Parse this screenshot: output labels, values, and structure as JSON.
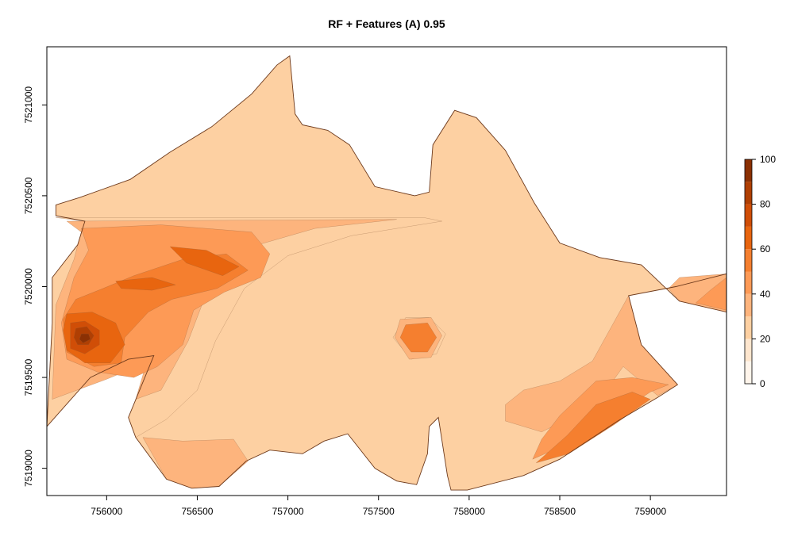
{
  "chart_data": {
    "type": "heatmap",
    "title": "RF + Features (A)  0.95",
    "xlabel": "",
    "ylabel": "",
    "xlim": [
      755670,
      759420
    ],
    "ylim": [
      7518850,
      7521320
    ],
    "x_ticks": [
      756000,
      756500,
      757000,
      757500,
      758000,
      758500,
      759000
    ],
    "y_ticks": [
      7519000,
      7519500,
      7520000,
      7520500,
      7521000
    ],
    "x_tick_labels": [
      "756000",
      "756500",
      "757000",
      "757500",
      "758000",
      "758500",
      "759000"
    ],
    "y_tick_labels": [
      "7519000",
      "7519500",
      "7520000",
      "7520500",
      "7521000"
    ],
    "colorbar": {
      "range": [
        0,
        100
      ],
      "ticks": [
        0,
        20,
        40,
        60,
        80,
        100
      ],
      "tick_labels": [
        "0",
        "20",
        "40",
        "60",
        "80",
        "100"
      ],
      "levels": [
        0,
        10,
        20,
        30,
        40,
        50,
        60,
        70,
        80,
        90,
        100
      ],
      "colors": [
        "#fff5eb",
        "#fee6ce",
        "#fdd0a2",
        "#fdb47d",
        "#fd9a56",
        "#f57f2f",
        "#e8650f",
        "#d04e07",
        "#b03f03",
        "#8b3003"
      ]
    },
    "field_outline": [
      [
        755670,
        7519230
      ],
      [
        755910,
        7519500
      ],
      [
        756120,
        7519600
      ],
      [
        756260,
        7519620
      ],
      [
        756120,
        7519280
      ],
      [
        756160,
        7519170
      ],
      [
        756330,
        7518940
      ],
      [
        756470,
        7518890
      ],
      [
        756620,
        7518900
      ],
      [
        756770,
        7519040
      ],
      [
        756900,
        7519100
      ],
      [
        757080,
        7519080
      ],
      [
        757200,
        7519150
      ],
      [
        757330,
        7519190
      ],
      [
        757480,
        7519000
      ],
      [
        757600,
        7518930
      ],
      [
        757710,
        7518910
      ],
      [
        757770,
        7519080
      ],
      [
        757780,
        7519230
      ],
      [
        757830,
        7519280
      ],
      [
        757880,
        7518960
      ],
      [
        757900,
        7518880
      ],
      [
        757990,
        7518880
      ],
      [
        758300,
        7518960
      ],
      [
        758500,
        7519050
      ],
      [
        758820,
        7519260
      ],
      [
        759040,
        7519390
      ],
      [
        759150,
        7519460
      ],
      [
        758950,
        7519680
      ],
      [
        758880,
        7519950
      ],
      [
        759140,
        7520000
      ],
      [
        759420,
        7520070
      ],
      [
        759420,
        7519860
      ],
      [
        759160,
        7519920
      ],
      [
        758950,
        7520120
      ],
      [
        758720,
        7520160
      ],
      [
        758500,
        7520240
      ],
      [
        758360,
        7520460
      ],
      [
        758200,
        7520750
      ],
      [
        758040,
        7520930
      ],
      [
        757920,
        7520970
      ],
      [
        757800,
        7520780
      ],
      [
        757780,
        7520520
      ],
      [
        757700,
        7520500
      ],
      [
        757480,
        7520550
      ],
      [
        757340,
        7520780
      ],
      [
        757220,
        7520860
      ],
      [
        757080,
        7520890
      ],
      [
        757040,
        7520950
      ],
      [
        757010,
        7521270
      ],
      [
        756940,
        7521220
      ],
      [
        756800,
        7521060
      ],
      [
        756580,
        7520880
      ],
      [
        756350,
        7520740
      ],
      [
        756130,
        7520590
      ],
      [
        755850,
        7520490
      ],
      [
        755720,
        7520450
      ],
      [
        755720,
        7520390
      ],
      [
        755880,
        7520360
      ],
      [
        755840,
        7520230
      ],
      [
        755700,
        7520050
      ],
      [
        755700,
        7519800
      ]
    ],
    "outline_color": "#6e3a1c",
    "zones": [
      {
        "level": 20,
        "polygon": [
          [
            757650,
            7519830
          ],
          [
            757780,
            7519830
          ],
          [
            757870,
            7519740
          ],
          [
            757820,
            7519630
          ],
          [
            757680,
            7519600
          ],
          [
            757580,
            7519720
          ]
        ]
      },
      {
        "level": 20,
        "polygon": [
          [
            755720,
            7520380
          ],
          [
            757750,
            7520380
          ],
          [
            757850,
            7520360
          ],
          [
            757350,
            7520280
          ],
          [
            757000,
            7520170
          ],
          [
            756760,
            7519990
          ],
          [
            756600,
            7519700
          ],
          [
            756500,
            7519430
          ],
          [
            756330,
            7519270
          ],
          [
            756160,
            7519170
          ],
          [
            756120,
            7519280
          ],
          [
            756260,
            7519620
          ],
          [
            756120,
            7519600
          ],
          [
            755910,
            7519500
          ],
          [
            755670,
            7519230
          ],
          [
            755700,
            7519800
          ],
          [
            755700,
            7520050
          ],
          [
            755840,
            7520230
          ],
          [
            755880,
            7520360
          ]
        ]
      },
      {
        "level": 30,
        "polygon": [
          [
            755780,
            7520360
          ],
          [
            757600,
            7520370
          ],
          [
            757150,
            7520320
          ],
          [
            756800,
            7520220
          ],
          [
            756560,
            7519990
          ],
          [
            756450,
            7519700
          ],
          [
            756300,
            7519430
          ],
          [
            756160,
            7519380
          ],
          [
            756220,
            7519580
          ],
          [
            756000,
            7519490
          ],
          [
            755700,
            7519380
          ],
          [
            755720,
            7519900
          ],
          [
            755820,
            7520150
          ],
          [
            755860,
            7520300
          ]
        ]
      },
      {
        "level": 40,
        "polygon": [
          [
            755860,
            7520320
          ],
          [
            756300,
            7520340
          ],
          [
            756800,
            7520300
          ],
          [
            756900,
            7520180
          ],
          [
            756850,
            7520050
          ],
          [
            756650,
            7519970
          ],
          [
            756480,
            7519870
          ],
          [
            756420,
            7519680
          ],
          [
            756280,
            7519560
          ],
          [
            756150,
            7519500
          ],
          [
            755950,
            7519530
          ],
          [
            755780,
            7519600
          ],
          [
            755750,
            7519800
          ],
          [
            755820,
            7520050
          ],
          [
            755900,
            7520200
          ]
        ]
      },
      {
        "level": 50,
        "polygon": [
          [
            755830,
            7519930
          ],
          [
            755980,
            7519990
          ],
          [
            756150,
            7520060
          ],
          [
            756420,
            7520150
          ],
          [
            756660,
            7520180
          ],
          [
            756780,
            7520090
          ],
          [
            756610,
            7519990
          ],
          [
            756360,
            7519930
          ],
          [
            756230,
            7519860
          ],
          [
            756100,
            7519720
          ],
          [
            756080,
            7519580
          ],
          [
            755930,
            7519560
          ],
          [
            755780,
            7519640
          ],
          [
            755760,
            7519820
          ]
        ]
      },
      {
        "level": 60,
        "polygon": [
          [
            755780,
            7519850
          ],
          [
            755920,
            7519860
          ],
          [
            756050,
            7519800
          ],
          [
            756100,
            7519680
          ],
          [
            756020,
            7519580
          ],
          [
            755880,
            7519580
          ],
          [
            755780,
            7519650
          ],
          [
            755760,
            7519760
          ]
        ]
      },
      {
        "level": 60,
        "polygon": [
          [
            756050,
            7520030
          ],
          [
            756250,
            7520050
          ],
          [
            756380,
            7520010
          ],
          [
            756250,
            7519980
          ],
          [
            756080,
            7519990
          ]
        ]
      },
      {
        "level": 60,
        "polygon": [
          [
            756350,
            7520220
          ],
          [
            756550,
            7520200
          ],
          [
            756730,
            7520110
          ],
          [
            756640,
            7520060
          ],
          [
            756440,
            7520130
          ]
        ]
      },
      {
        "level": 70,
        "polygon": [
          [
            755800,
            7519800
          ],
          [
            755880,
            7519810
          ],
          [
            755960,
            7519760
          ],
          [
            755960,
            7519680
          ],
          [
            755880,
            7519630
          ],
          [
            755800,
            7519660
          ]
        ]
      },
      {
        "level": 80,
        "polygon": [
          [
            755830,
            7519770
          ],
          [
            755890,
            7519780
          ],
          [
            755930,
            7519730
          ],
          [
            755900,
            7519680
          ],
          [
            755840,
            7519680
          ],
          [
            755820,
            7519720
          ]
        ]
      },
      {
        "level": 90,
        "polygon": [
          [
            755860,
            7519740
          ],
          [
            755900,
            7519740
          ],
          [
            755910,
            7519710
          ],
          [
            755870,
            7519690
          ],
          [
            755850,
            7519710
          ]
        ]
      },
      {
        "level": 30,
        "polygon": [
          [
            757620,
            7519820
          ],
          [
            757790,
            7519830
          ],
          [
            757850,
            7519730
          ],
          [
            757790,
            7519610
          ],
          [
            757670,
            7519600
          ],
          [
            757590,
            7519720
          ]
        ]
      },
      {
        "level": 50,
        "polygon": [
          [
            757650,
            7519790
          ],
          [
            757770,
            7519800
          ],
          [
            757820,
            7519720
          ],
          [
            757770,
            7519640
          ],
          [
            757680,
            7519640
          ],
          [
            757620,
            7519720
          ]
        ]
      },
      {
        "level": 30,
        "polygon": [
          [
            758200,
            7519260
          ],
          [
            758400,
            7519200
          ],
          [
            758700,
            7519350
          ],
          [
            758850,
            7519560
          ],
          [
            759040,
            7519400
          ],
          [
            759150,
            7519460
          ],
          [
            758950,
            7519680
          ],
          [
            758880,
            7519950
          ],
          [
            758680,
            7519590
          ],
          [
            758500,
            7519480
          ],
          [
            758300,
            7519430
          ],
          [
            758200,
            7519350
          ]
        ]
      },
      {
        "level": 40,
        "polygon": [
          [
            758350,
            7519050
          ],
          [
            758600,
            7519160
          ],
          [
            758820,
            7519300
          ],
          [
            759000,
            7519420
          ],
          [
            759100,
            7519460
          ],
          [
            758900,
            7519500
          ],
          [
            758700,
            7519480
          ],
          [
            758500,
            7519290
          ],
          [
            758400,
            7519160
          ]
        ]
      },
      {
        "level": 50,
        "polygon": [
          [
            758370,
            7519030
          ],
          [
            758550,
            7519080
          ],
          [
            758800,
            7519240
          ],
          [
            759000,
            7519380
          ],
          [
            758900,
            7519420
          ],
          [
            758700,
            7519350
          ],
          [
            758540,
            7519180
          ]
        ]
      },
      {
        "level": 30,
        "polygon": [
          [
            759160,
            7519920
          ],
          [
            759420,
            7519860
          ],
          [
            759420,
            7520070
          ],
          [
            759160,
            7520050
          ],
          [
            759100,
            7519990
          ]
        ]
      },
      {
        "level": 40,
        "polygon": [
          [
            759250,
            7519910
          ],
          [
            759420,
            7519870
          ],
          [
            759420,
            7520050
          ],
          [
            759330,
            7519980
          ]
        ]
      },
      {
        "level": 30,
        "polygon": [
          [
            756200,
            7519170
          ],
          [
            756420,
            7519150
          ],
          [
            756700,
            7519160
          ],
          [
            756780,
            7519040
          ],
          [
            756620,
            7518900
          ],
          [
            756470,
            7518890
          ],
          [
            756330,
            7518940
          ]
        ]
      }
    ]
  }
}
